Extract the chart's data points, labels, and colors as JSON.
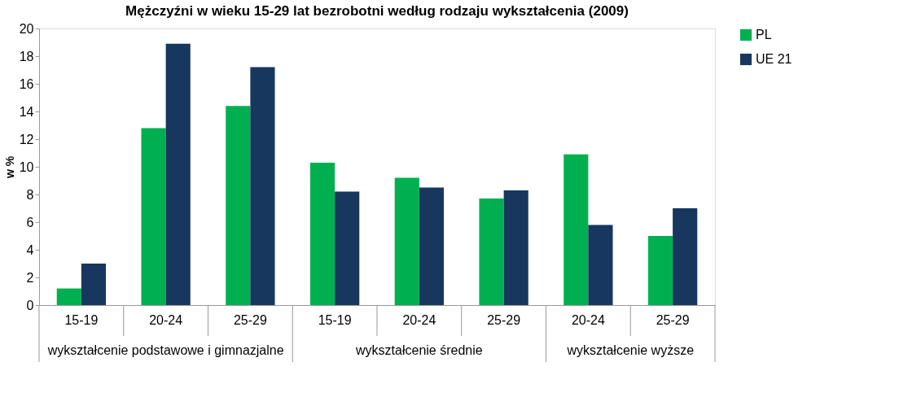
{
  "chart_data": {
    "type": "bar",
    "title": "Mężczyźni w wieku 15-29 lat bezrobotni według rodzaju wykształcenia (2009)",
    "ylabel": "w %",
    "categories": [
      "15-19",
      "20-24",
      "25-29",
      "15-19",
      "20-24",
      "25-29",
      "20-24",
      "25-29"
    ],
    "series": [
      {
        "name": "PL",
        "color": "#00b050",
        "values": [
          1.2,
          12.8,
          14.4,
          10.3,
          9.2,
          7.7,
          10.9,
          5.0
        ]
      },
      {
        "name": "UE 21",
        "color": "#17375e",
        "values": [
          3.0,
          18.9,
          17.2,
          8.2,
          8.5,
          8.3,
          5.8,
          7.0
        ]
      }
    ],
    "ylim": [
      0,
      20
    ],
    "yticks": [
      0,
      2,
      4,
      6,
      8,
      10,
      12,
      14,
      16,
      18,
      20
    ],
    "grid": false,
    "legend": "right",
    "annotations": [
      "wykształcenie podstawowe i gimnazjalne",
      "wykształcenie średnie",
      "wykształcenie wyższe"
    ]
  }
}
